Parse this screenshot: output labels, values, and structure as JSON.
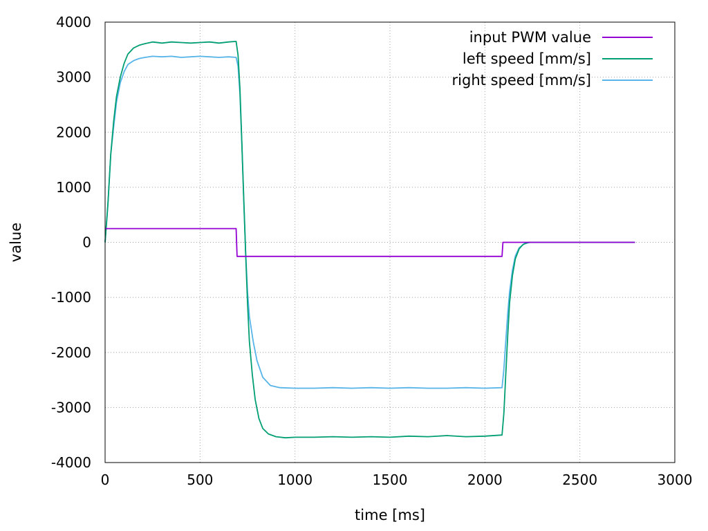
{
  "chart_data": {
    "type": "line",
    "title": "",
    "xlabel": "time [ms]",
    "ylabel": "value",
    "xlim": [
      0,
      3000
    ],
    "ylim": [
      -4000,
      4000
    ],
    "x_ticks": [
      0,
      500,
      1000,
      1500,
      2000,
      2500,
      3000
    ],
    "y_ticks": [
      4000,
      3000,
      2000,
      1000,
      0,
      -1000,
      -2000,
      -3000,
      -4000
    ],
    "grid": true,
    "legend_position": "top-right",
    "series": [
      {
        "name": "input PWM value",
        "color": "#9400d3",
        "points": [
          [
            0,
            250
          ],
          [
            690,
            250
          ],
          [
            695,
            -255
          ],
          [
            2090,
            -255
          ],
          [
            2095,
            0
          ],
          [
            2790,
            0
          ]
        ]
      },
      {
        "name": "left speed [mm/s]",
        "color": "#009e73",
        "points": [
          [
            0,
            0
          ],
          [
            15,
            700
          ],
          [
            30,
            1600
          ],
          [
            45,
            2200
          ],
          [
            60,
            2650
          ],
          [
            80,
            3000
          ],
          [
            100,
            3250
          ],
          [
            120,
            3420
          ],
          [
            150,
            3530
          ],
          [
            180,
            3580
          ],
          [
            210,
            3610
          ],
          [
            250,
            3640
          ],
          [
            300,
            3620
          ],
          [
            350,
            3640
          ],
          [
            400,
            3630
          ],
          [
            450,
            3620
          ],
          [
            500,
            3630
          ],
          [
            550,
            3640
          ],
          [
            600,
            3620
          ],
          [
            650,
            3640
          ],
          [
            690,
            3650
          ],
          [
            700,
            3400
          ],
          [
            710,
            2800
          ],
          [
            720,
            1800
          ],
          [
            730,
            800
          ],
          [
            740,
            -200
          ],
          [
            750,
            -1100
          ],
          [
            760,
            -1800
          ],
          [
            775,
            -2400
          ],
          [
            790,
            -2850
          ],
          [
            810,
            -3200
          ],
          [
            830,
            -3380
          ],
          [
            860,
            -3480
          ],
          [
            900,
            -3530
          ],
          [
            950,
            -3550
          ],
          [
            1000,
            -3540
          ],
          [
            1100,
            -3540
          ],
          [
            1200,
            -3530
          ],
          [
            1300,
            -3540
          ],
          [
            1400,
            -3530
          ],
          [
            1500,
            -3540
          ],
          [
            1600,
            -3520
          ],
          [
            1700,
            -3530
          ],
          [
            1800,
            -3510
          ],
          [
            1900,
            -3530
          ],
          [
            2000,
            -3520
          ],
          [
            2090,
            -3500
          ],
          [
            2100,
            -3100
          ],
          [
            2110,
            -2400
          ],
          [
            2120,
            -1700
          ],
          [
            2130,
            -1100
          ],
          [
            2145,
            -600
          ],
          [
            2160,
            -300
          ],
          [
            2180,
            -120
          ],
          [
            2200,
            -40
          ],
          [
            2230,
            0
          ],
          [
            2790,
            0
          ]
        ]
      },
      {
        "name": "right speed [mm/s]",
        "color": "#56b4e9",
        "points": [
          [
            0,
            0
          ],
          [
            15,
            700
          ],
          [
            30,
            1600
          ],
          [
            45,
            2100
          ],
          [
            60,
            2550
          ],
          [
            80,
            2900
          ],
          [
            100,
            3100
          ],
          [
            120,
            3230
          ],
          [
            150,
            3300
          ],
          [
            180,
            3340
          ],
          [
            210,
            3360
          ],
          [
            250,
            3380
          ],
          [
            300,
            3370
          ],
          [
            350,
            3380
          ],
          [
            400,
            3360
          ],
          [
            450,
            3370
          ],
          [
            500,
            3380
          ],
          [
            550,
            3370
          ],
          [
            600,
            3360
          ],
          [
            650,
            3370
          ],
          [
            690,
            3360
          ],
          [
            700,
            3200
          ],
          [
            710,
            2700
          ],
          [
            720,
            1800
          ],
          [
            730,
            800
          ],
          [
            740,
            -200
          ],
          [
            750,
            -900
          ],
          [
            760,
            -1350
          ],
          [
            780,
            -1800
          ],
          [
            800,
            -2150
          ],
          [
            830,
            -2450
          ],
          [
            870,
            -2600
          ],
          [
            920,
            -2640
          ],
          [
            1000,
            -2650
          ],
          [
            1100,
            -2650
          ],
          [
            1200,
            -2640
          ],
          [
            1300,
            -2650
          ],
          [
            1400,
            -2640
          ],
          [
            1500,
            -2650
          ],
          [
            1600,
            -2640
          ],
          [
            1700,
            -2650
          ],
          [
            1800,
            -2650
          ],
          [
            1900,
            -2640
          ],
          [
            2000,
            -2650
          ],
          [
            2090,
            -2640
          ],
          [
            2100,
            -2300
          ],
          [
            2110,
            -1800
          ],
          [
            2120,
            -1300
          ],
          [
            2130,
            -900
          ],
          [
            2145,
            -500
          ],
          [
            2160,
            -250
          ],
          [
            2180,
            -100
          ],
          [
            2210,
            -20
          ],
          [
            2240,
            0
          ],
          [
            2790,
            0
          ]
        ]
      }
    ]
  }
}
